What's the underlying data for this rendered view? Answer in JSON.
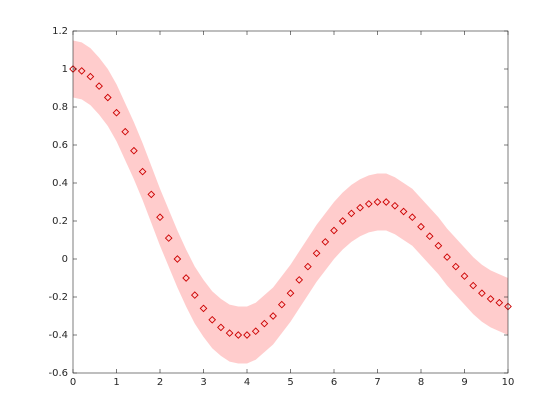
{
  "chart_data": {
    "type": "scatter",
    "x": [
      0,
      0.2,
      0.4,
      0.6,
      0.8,
      1,
      1.2,
      1.4,
      1.6,
      1.8,
      2,
      2.2,
      2.4,
      2.6,
      2.8,
      3,
      3.2,
      3.4,
      3.6,
      3.8,
      4,
      4.2,
      4.4,
      4.6,
      4.8,
      5,
      5.2,
      5.4,
      5.6,
      5.8,
      6,
      6.2,
      6.4,
      6.6,
      6.8,
      7,
      7.2,
      7.4,
      7.6,
      7.8,
      8,
      8.2,
      8.4,
      8.6,
      8.8,
      9,
      9.2,
      9.4,
      9.6,
      9.8,
      10
    ],
    "values": [
      1.0,
      0.99,
      0.96,
      0.91,
      0.85,
      0.77,
      0.67,
      0.57,
      0.46,
      0.34,
      0.22,
      0.11,
      0.0,
      -0.1,
      -0.19,
      -0.26,
      -0.32,
      -0.36,
      -0.39,
      -0.4,
      -0.4,
      -0.38,
      -0.34,
      -0.3,
      -0.24,
      -0.18,
      -0.11,
      -0.04,
      0.03,
      0.09,
      0.15,
      0.2,
      0.24,
      0.27,
      0.29,
      0.3,
      0.3,
      0.28,
      0.25,
      0.22,
      0.17,
      0.12,
      0.07,
      0.01,
      -0.04,
      -0.09,
      -0.14,
      -0.18,
      -0.21,
      -0.23,
      -0.25
    ],
    "color": "#cc0000",
    "band": {
      "color": "#ffcccc",
      "upper": [
        1.15,
        1.14,
        1.11,
        1.06,
        1.0,
        0.92,
        0.82,
        0.72,
        0.61,
        0.49,
        0.37,
        0.26,
        0.15,
        0.05,
        -0.04,
        -0.11,
        -0.17,
        -0.21,
        -0.24,
        -0.25,
        -0.25,
        -0.23,
        -0.19,
        -0.15,
        -0.09,
        -0.03,
        0.04,
        0.11,
        0.18,
        0.24,
        0.3,
        0.35,
        0.39,
        0.42,
        0.44,
        0.45,
        0.45,
        0.43,
        0.4,
        0.37,
        0.32,
        0.27,
        0.22,
        0.16,
        0.11,
        0.06,
        0.01,
        -0.03,
        -0.06,
        -0.08,
        -0.1
      ],
      "lower": [
        0.85,
        0.84,
        0.81,
        0.76,
        0.7,
        0.62,
        0.52,
        0.42,
        0.31,
        0.19,
        0.07,
        -0.04,
        -0.15,
        -0.25,
        -0.34,
        -0.41,
        -0.47,
        -0.51,
        -0.54,
        -0.55,
        -0.55,
        -0.53,
        -0.49,
        -0.45,
        -0.39,
        -0.33,
        -0.26,
        -0.19,
        -0.12,
        -0.06,
        0.0,
        0.05,
        0.09,
        0.12,
        0.14,
        0.15,
        0.15,
        0.13,
        0.1,
        0.07,
        0.02,
        -0.03,
        -0.08,
        -0.14,
        -0.19,
        -0.24,
        -0.29,
        -0.33,
        -0.36,
        -0.38,
        -0.4
      ]
    },
    "xlim": [
      0,
      10
    ],
    "xticks": [
      0,
      1,
      2,
      3,
      4,
      5,
      6,
      7,
      8,
      9,
      10
    ],
    "ylim": [
      -0.6,
      1.2
    ],
    "yticks": [
      -0.6,
      -0.4,
      -0.2,
      0,
      0.2,
      0.4,
      0.6,
      0.8,
      1,
      1.2
    ],
    "grid": false
  }
}
